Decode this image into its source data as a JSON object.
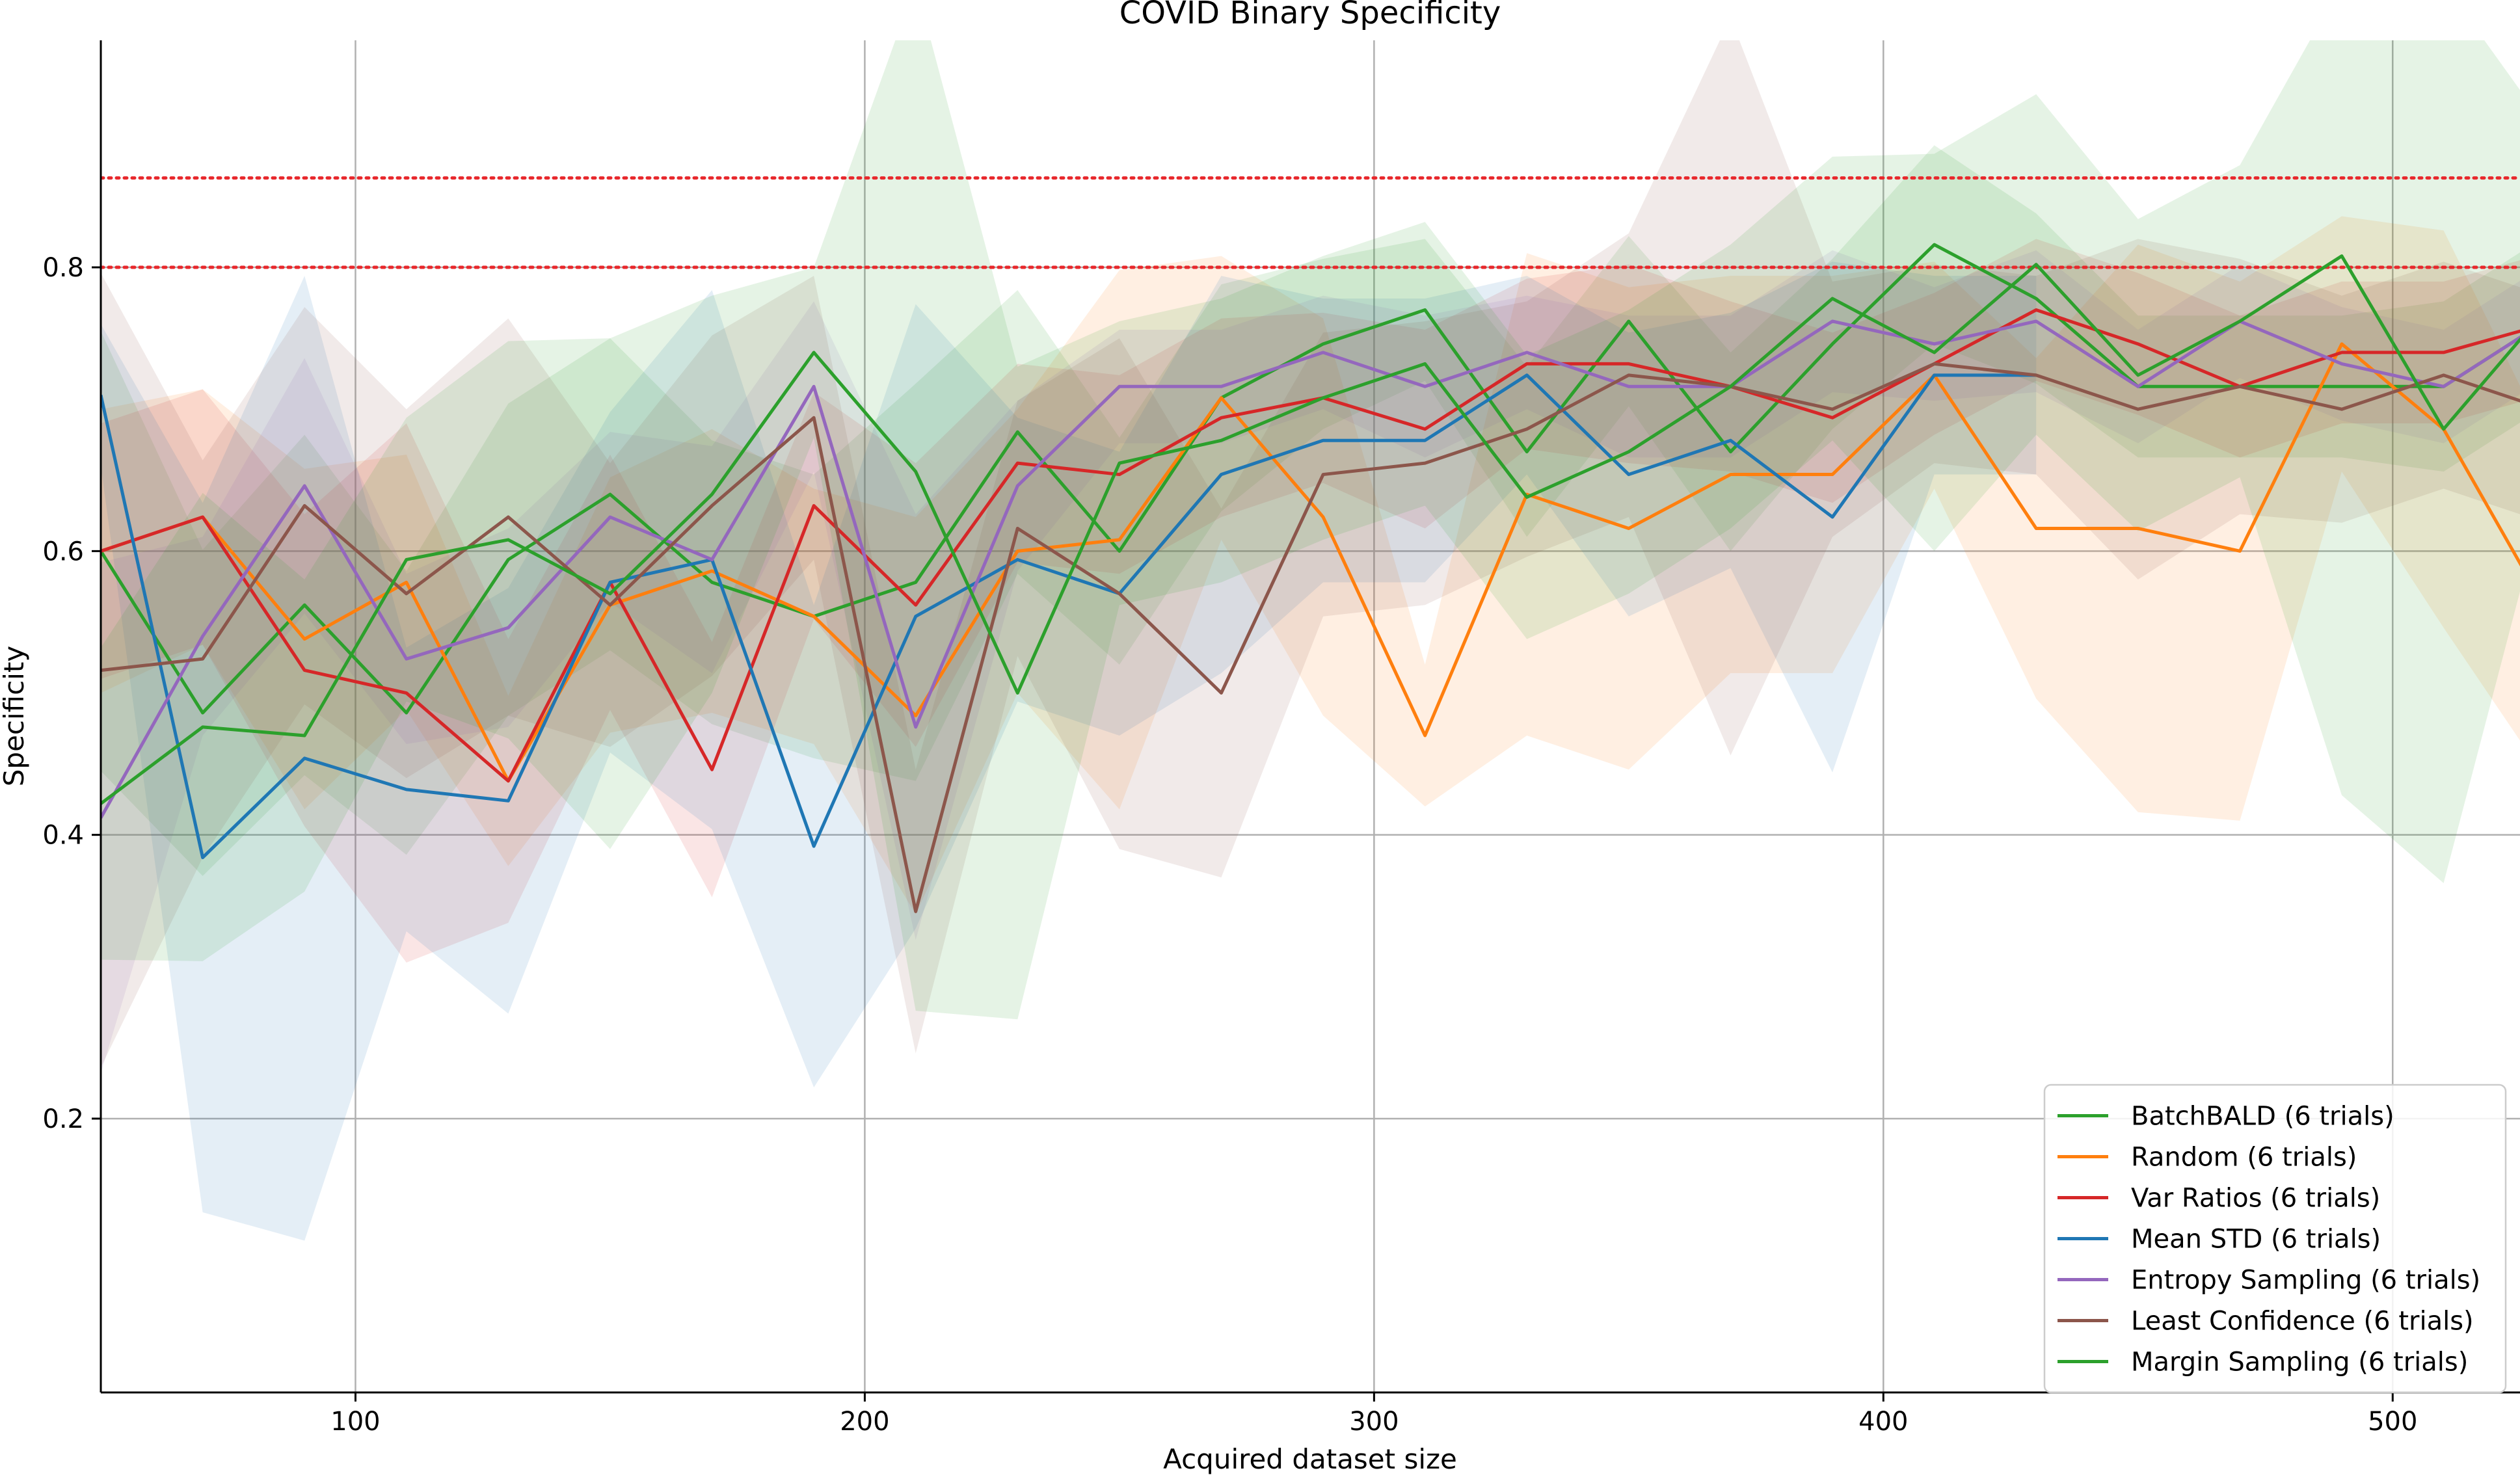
{
  "chart_data": {
    "type": "line",
    "title": "COVID Binary Specificity",
    "xlabel": "Acquired dataset size",
    "ylabel": "Specificity",
    "xlim": [
      50,
      525
    ],
    "ylim": [
      0.007,
      0.96
    ],
    "xticks": [
      100,
      200,
      300,
      400,
      500
    ],
    "yticks": [
      0.2,
      0.4,
      0.6,
      0.8
    ],
    "ytick_labels": [
      "0.2",
      "0.4",
      "0.6",
      "0.8"
    ],
    "grid": true,
    "legend_position": "lower-right",
    "reference_lines": [
      {
        "y": 0.863,
        "style": "dotted",
        "color": "#e8282c"
      },
      {
        "y": 0.8,
        "style": "dotted",
        "color": "#e8282c"
      }
    ],
    "x": [
      50,
      70,
      90,
      110,
      130,
      150,
      170,
      190,
      210,
      230,
      250,
      270,
      290,
      310,
      330,
      350,
      370,
      390,
      410,
      430,
      450,
      470,
      490,
      510,
      530
    ],
    "series": [
      {
        "name": "BatchBALD (6 trials)",
        "color": "#2ca02c",
        "values": [
          0.6,
          0.486,
          0.562,
          0.486,
          0.594,
          0.64,
          0.578,
          0.554,
          0.578,
          0.684,
          0.6,
          0.708,
          0.746,
          0.77,
          0.67,
          0.762,
          0.67,
          0.746,
          0.816,
          0.778,
          0.716,
          0.716,
          0.716,
          0.716,
          0.762
        ],
        "band": [
          0.155,
          0.115,
          0.12,
          0.1,
          0.11,
          0.11,
          0.1,
          0.1,
          0.14,
          0.1,
          0.08,
          0.08,
          0.06,
          0.05,
          0.06,
          0.06,
          0.07,
          0.06,
          0.07,
          0.06,
          0.05,
          0.05,
          0.05,
          0.06,
          0.06
        ]
      },
      {
        "name": "Random (6 trials)",
        "color": "#ff7f0e",
        "values": [
          0.6,
          0.624,
          0.538,
          0.578,
          0.438,
          0.562,
          0.586,
          0.554,
          0.484,
          0.6,
          0.608,
          0.708,
          0.624,
          0.47,
          0.64,
          0.616,
          0.654,
          0.654,
          0.724,
          0.616,
          0.616,
          0.6,
          0.746,
          0.686,
          0.56
        ],
        "band": [
          0.1,
          0.09,
          0.12,
          0.09,
          0.06,
          0.09,
          0.1,
          0.09,
          0.14,
          0.1,
          0.19,
          0.1,
          0.14,
          0.05,
          0.17,
          0.17,
          0.14,
          0.14,
          0.08,
          0.12,
          0.2,
          0.19,
          0.09,
          0.14,
          0.12
        ]
      },
      {
        "name": "Var Ratios (6 trials)",
        "color": "#d62728",
        "values": [
          0.6,
          0.624,
          0.516,
          0.5,
          0.438,
          0.578,
          0.446,
          0.632,
          0.562,
          0.662,
          0.654,
          0.694,
          0.708,
          0.686,
          0.732,
          0.732,
          0.716,
          0.694,
          0.732,
          0.77,
          0.746,
          0.716,
          0.74,
          0.74,
          0.76
        ],
        "band": [
          0.09,
          0.09,
          0.11,
          0.19,
          0.1,
          0.09,
          0.09,
          0.08,
          0.1,
          0.07,
          0.07,
          0.07,
          0.06,
          0.07,
          0.06,
          0.07,
          0.06,
          0.06,
          0.05,
          0.05,
          0.05,
          0.05,
          0.05,
          0.05,
          0.05
        ]
      },
      {
        "name": "Mean STD (6 trials)",
        "color": "#1f77b4",
        "values": [
          0.71,
          0.384,
          0.454,
          0.432,
          0.424,
          0.578,
          0.594,
          0.392,
          0.554,
          0.594,
          0.57,
          0.654,
          0.678,
          0.678,
          0.724,
          0.654,
          0.678,
          0.624,
          0.724,
          0.724,
          null,
          null,
          null,
          null,
          null
        ],
        "band": [
          0.05,
          0.25,
          0.34,
          0.1,
          0.15,
          0.12,
          0.19,
          0.17,
          0.22,
          0.1,
          0.1,
          0.14,
          0.1,
          0.1,
          0.07,
          0.1,
          0.09,
          0.18,
          0.07,
          0.07,
          null,
          null,
          null,
          null,
          null
        ]
      },
      {
        "name": "Entropy Sampling (6 trials)",
        "color": "#9467bd",
        "values": [
          0.412,
          0.54,
          0.646,
          0.524,
          0.546,
          0.624,
          0.594,
          0.716,
          0.476,
          0.646,
          0.716,
          0.716,
          0.74,
          0.716,
          0.74,
          0.716,
          0.716,
          0.762,
          0.746,
          0.762,
          0.716,
          0.762,
          0.732,
          0.716,
          0.762
        ],
        "band": [
          0.18,
          0.07,
          0.09,
          0.06,
          0.07,
          0.06,
          0.08,
          0.06,
          0.15,
          0.06,
          0.04,
          0.04,
          0.04,
          0.05,
          0.04,
          0.05,
          0.05,
          0.05,
          0.04,
          0.05,
          0.04,
          0.04,
          0.04,
          0.04,
          0.04
        ]
      },
      {
        "name": "Least Confidence (6 trials)",
        "color": "#8c564b",
        "values": [
          0.516,
          0.524,
          0.632,
          0.57,
          0.624,
          0.562,
          0.632,
          0.694,
          0.346,
          0.616,
          0.57,
          0.5,
          0.654,
          0.662,
          0.686,
          0.724,
          0.716,
          0.7,
          0.732,
          0.724,
          0.7,
          0.716,
          0.7,
          0.724,
          0.7
        ],
        "band": [
          0.28,
          0.14,
          0.14,
          0.13,
          0.14,
          0.1,
          0.12,
          0.1,
          0.1,
          0.09,
          0.18,
          0.13,
          0.1,
          0.1,
          0.09,
          0.1,
          0.26,
          0.09,
          0.07,
          0.07,
          0.12,
          0.09,
          0.08,
          0.08,
          0.08
        ]
      },
      {
        "name": "Margin Sampling (6 trials)",
        "color": "#2ca02c",
        "values": [
          0.422,
          0.476,
          0.47,
          0.594,
          0.608,
          0.57,
          0.64,
          0.74,
          0.656,
          0.5,
          0.662,
          0.678,
          0.708,
          0.732,
          0.638,
          0.67,
          0.716,
          0.778,
          0.74,
          0.802,
          0.724,
          0.762,
          0.808,
          0.686,
          0.77
        ],
        "band": [
          0.11,
          0.165,
          0.11,
          0.1,
          0.14,
          0.18,
          0.14,
          0.06,
          0.38,
          0.23,
          0.1,
          0.1,
          0.1,
          0.1,
          0.1,
          0.1,
          0.1,
          0.1,
          0.14,
          0.12,
          0.11,
          0.11,
          0.38,
          0.32,
          0.13
        ]
      }
    ]
  }
}
